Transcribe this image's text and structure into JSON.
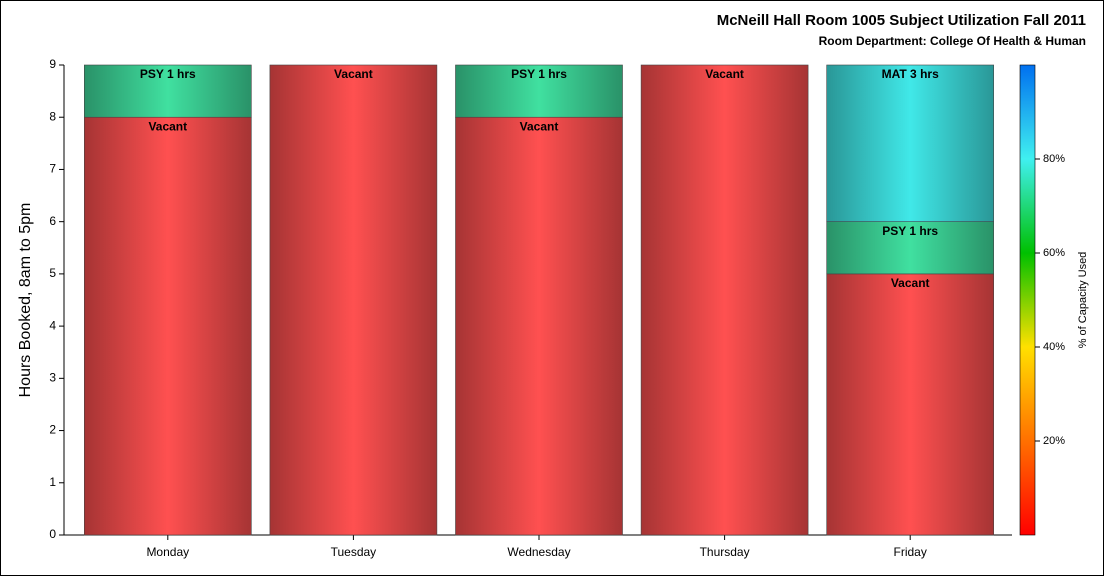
{
  "chart_data": {
    "type": "stacked_bar",
    "title": "McNeill Hall Room 1005 Subject Utilization Fall 2011",
    "subtitle": "Room Department:  College Of Health & Human",
    "y_label": "Hours Booked, 8am to 5pm",
    "categories": [
      "Monday",
      "Tuesday",
      "Wednesday",
      "Thursday",
      "Friday"
    ],
    "series": [
      {
        "color": "#ff5050",
        "values": [
          8,
          9,
          8,
          9,
          5
        ],
        "value_labels": [
          "Vacant",
          "Vacant",
          "Vacant",
          "Vacant",
          "Vacant"
        ]
      },
      {
        "color": "#40e0a0",
        "values": [
          1,
          null,
          1,
          null,
          1
        ],
        "value_labels": [
          "PSY 1 hrs",
          null,
          "PSY 1 hrs",
          null,
          "PSY 1 hrs"
        ]
      },
      {
        "color": "#40e8e8",
        "values": [
          null,
          null,
          null,
          null,
          3
        ],
        "value_labels": [
          null,
          null,
          null,
          null,
          "MAT 3 hrs"
        ]
      }
    ],
    "ylim": [
      0,
      9
    ],
    "yticks": [
      0,
      1,
      2,
      3,
      4,
      5,
      6,
      7,
      8,
      9
    ],
    "colorbar": {
      "label": "% of Capacity Used",
      "lim": [
        0,
        100
      ],
      "ticks": [
        {
          "value": 20,
          "label": "20%"
        },
        {
          "value": 40,
          "label": "40%"
        },
        {
          "value": 60,
          "label": "60%"
        },
        {
          "value": 80,
          "label": "80%"
        }
      ],
      "colors": [
        "#ff0000",
        "#ff7000",
        "#ffe000",
        "#00c000",
        "#40f0f0",
        "#0070f0"
      ]
    }
  }
}
